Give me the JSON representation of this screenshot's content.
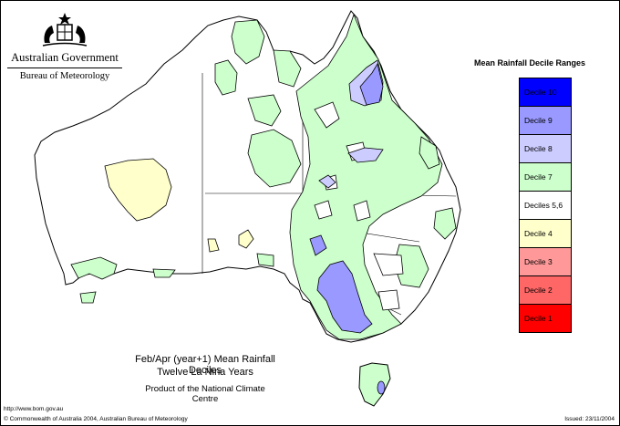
{
  "header": {
    "government": "Australian Government",
    "bureau": "Bureau of Meteorology"
  },
  "legend": {
    "title": "Mean Rainfall Decile Ranges",
    "items": [
      {
        "label": "Decile 10",
        "color": "#0000ff"
      },
      {
        "label": "Decile 9",
        "color": "#9999ff"
      },
      {
        "label": "Decile 8",
        "color": "#ccccff"
      },
      {
        "label": "Decile 7",
        "color": "#ccffcc"
      },
      {
        "label": "Deciles 5,6",
        "color": "#ffffff"
      },
      {
        "label": "Decile 4",
        "color": "#ffffcc"
      },
      {
        "label": "Decile 3",
        "color": "#ff9999"
      },
      {
        "label": "Decile 2",
        "color": "#ff6666"
      },
      {
        "label": "Decile 1",
        "color": "#ff0000"
      }
    ]
  },
  "caption": {
    "line1": "Feb/Apr (year+1) Mean Rainfall Deciles",
    "line2": "Twelve La Nina Years",
    "line3": "Product of the National Climate Centre"
  },
  "footer": {
    "url": "http://www.bom.gov.au",
    "copyright": "© Commonwealth of Australia 2004, Australian Bureau of Meteorology",
    "issued": "Issued: 23/11/2004"
  },
  "colors": {
    "decile7": "#ccffcc",
    "decile8": "#ccccff",
    "decile9": "#9999ff",
    "decile4": "#ffffcc",
    "outline": "#000000"
  }
}
